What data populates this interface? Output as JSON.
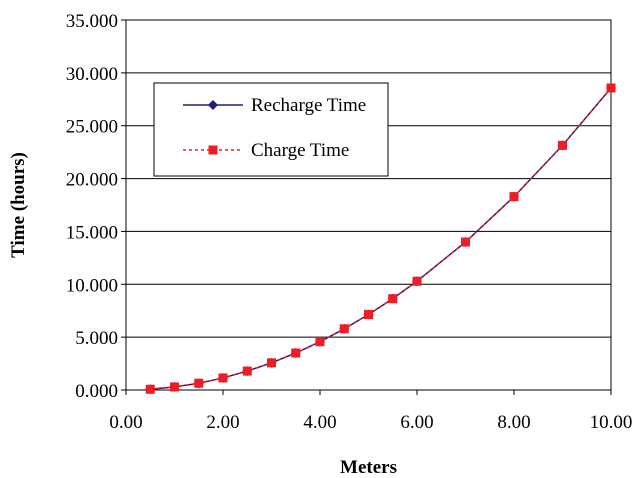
{
  "chart_data": {
    "type": "line",
    "title": "",
    "xlabel": "Meters",
    "ylabel": "Time (hours)",
    "xlim": [
      0,
      10
    ],
    "ylim": [
      0,
      35
    ],
    "x_ticks": [
      0,
      2,
      4,
      6,
      8,
      10
    ],
    "x_tick_labels": [
      "0.00",
      "2.00",
      "4.00",
      "6.00",
      "8.00",
      "10.00"
    ],
    "y_ticks": [
      0,
      5,
      10,
      15,
      20,
      25,
      30,
      35
    ],
    "y_tick_labels": [
      "0.000",
      "5.000",
      "10.000",
      "15.000",
      "20.000",
      "25.000",
      "30.000",
      "35.000"
    ],
    "grid": "horizontal",
    "legend_position": "upper-left",
    "x": [
      0.5,
      1.0,
      1.5,
      2.0,
      2.5,
      3.0,
      3.5,
      4.0,
      4.5,
      5.0,
      5.5,
      6.0,
      7.0,
      8.0,
      9.0,
      10.0
    ],
    "series": [
      {
        "name": "Recharge Time",
        "color": "#1f1f7a",
        "marker": "diamond",
        "line_style": "solid",
        "values": [
          0.07,
          0.29,
          0.64,
          1.14,
          1.79,
          2.57,
          3.5,
          4.57,
          5.79,
          7.14,
          8.64,
          10.29,
          14.0,
          18.29,
          23.14,
          28.57
        ]
      },
      {
        "name": "Charge Time",
        "color": "#ee1c24",
        "marker": "square",
        "line_style": "dotted",
        "values": [
          0.07,
          0.29,
          0.64,
          1.14,
          1.79,
          2.57,
          3.5,
          4.57,
          5.79,
          7.14,
          8.64,
          10.29,
          14.0,
          18.29,
          23.14,
          28.57
        ]
      }
    ]
  }
}
